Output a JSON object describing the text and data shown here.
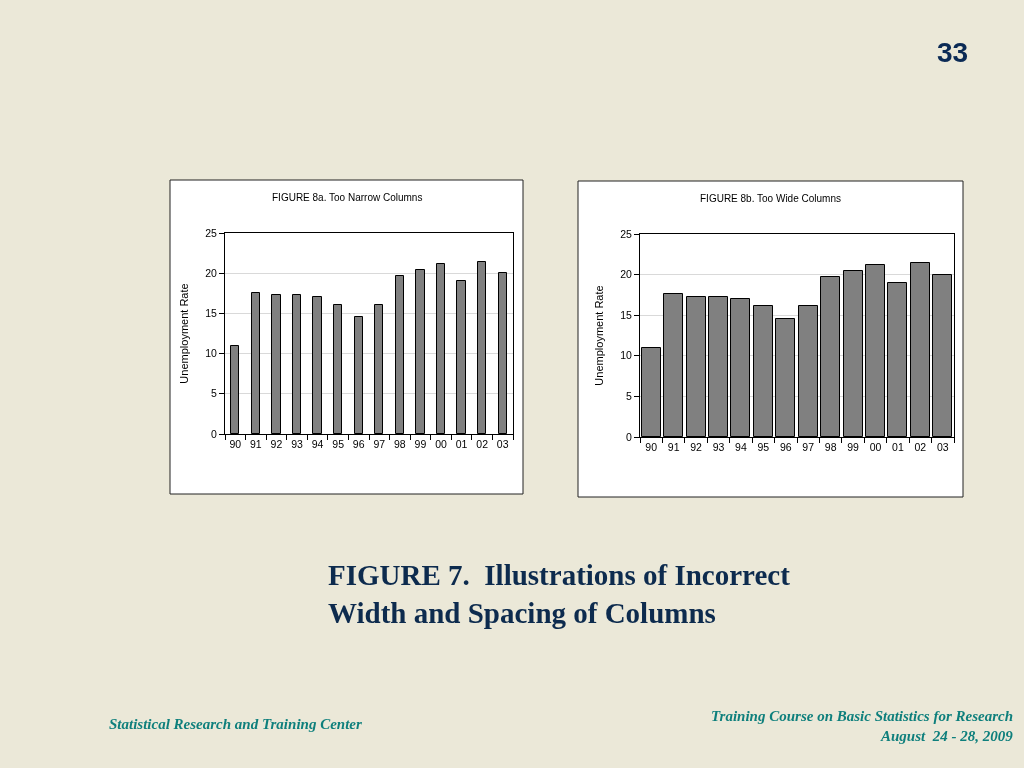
{
  "chart_data": [
    {
      "type": "bar",
      "title": "FIGURE 8a. Too Narrow Columns",
      "ylabel": "Unemployment Rate",
      "categories": [
        "90",
        "91",
        "92",
        "93",
        "94",
        "95",
        "96",
        "97",
        "98",
        "99",
        "00",
        "01",
        "02",
        "03"
      ],
      "values": [
        10.9,
        17.6,
        17.3,
        17.3,
        17.0,
        16.1,
        14.5,
        16.1,
        19.7,
        20.4,
        21.2,
        19.0,
        21.4,
        20.0
      ],
      "color": "#808080",
      "ylim": [
        0,
        25
      ],
      "yticks": [
        0,
        5,
        10,
        15,
        20,
        25
      ],
      "grid": "y"
    },
    {
      "type": "bar",
      "title": "FIGURE 8b. Too Wide Columns",
      "ylabel": "Unemployment Rate",
      "categories": [
        "90",
        "91",
        "92",
        "93",
        "94",
        "95",
        "96",
        "97",
        "98",
        "99",
        "00",
        "01",
        "02",
        "03"
      ],
      "values": [
        10.9,
        17.6,
        17.3,
        17.3,
        17.0,
        16.1,
        14.5,
        16.1,
        19.7,
        20.4,
        21.2,
        19.0,
        21.4,
        20.0
      ],
      "color": "#808080",
      "ylim": [
        0,
        25
      ],
      "yticks": [
        0,
        5,
        10,
        15,
        20,
        25
      ],
      "grid": "y"
    },
    {
      "type": "other",
      "title": "FIGURE 7.  Illustrations of Incorrect\nWidth and Spacing of Columns",
      "annotations": [
        "33",
        "Statistical Research and Training Center",
        "Training Course on Basic Statistics for Research",
        "August  24 - 28, 2009"
      ]
    }
  ]
}
